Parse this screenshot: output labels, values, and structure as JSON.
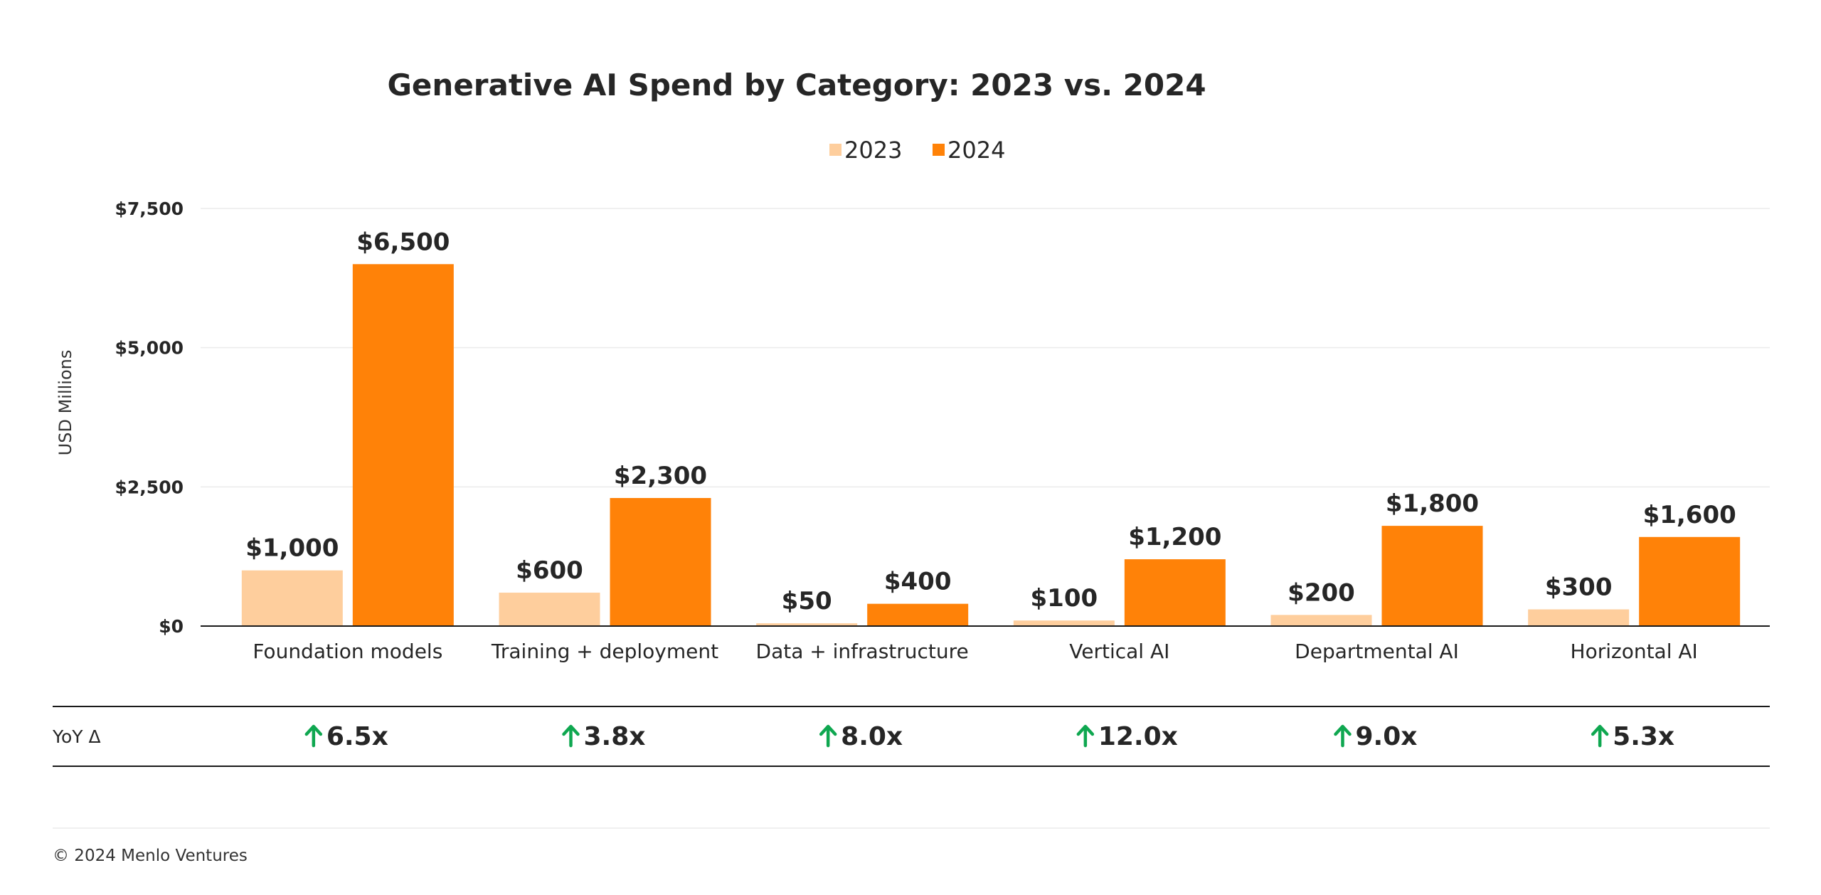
{
  "footer": "© 2024 Menlo Ventures",
  "colors": {
    "series_2023": "#FECE9D",
    "series_2024": "#FF8208",
    "up_arrow": "#0FA750",
    "text": "#262626",
    "grid": "#EBEBEB",
    "axis": "#1A1A1A"
  },
  "chart_data": {
    "type": "bar",
    "title": "Generative AI Spend by Category: 2023 vs. 2024",
    "ylabel": "USD Millions",
    "xlabel": "",
    "ylim": [
      0,
      7500
    ],
    "yticks": [
      0,
      2500,
      5000,
      7500
    ],
    "ytick_labels": [
      "$0",
      "$2,500",
      "$5,000",
      "$7,500"
    ],
    "grid": true,
    "legend_position": "top-center",
    "categories": [
      "Foundation models",
      "Training + deployment",
      "Data + infrastructure",
      "Vertical AI",
      "Departmental AI",
      "Horizontal AI"
    ],
    "series": [
      {
        "name": "2023",
        "color": "#FECE9D",
        "values": [
          1000,
          600,
          50,
          100,
          200,
          300
        ],
        "labels": [
          "$1,000",
          "$600",
          "$50",
          "$100",
          "$200",
          "$300"
        ]
      },
      {
        "name": "2024",
        "color": "#FF8208",
        "values": [
          6500,
          2300,
          400,
          1200,
          1800,
          1600
        ],
        "labels": [
          "$6,500",
          "$2,300",
          "$400",
          "$1,200",
          "$1,800",
          "$1,600"
        ]
      }
    ],
    "yoy": {
      "label": "YoY Δ",
      "icon": "up-arrow-icon",
      "values": [
        "6.5x",
        "3.8x",
        "8.0x",
        "12.0x",
        "9.0x",
        "5.3x"
      ]
    }
  }
}
